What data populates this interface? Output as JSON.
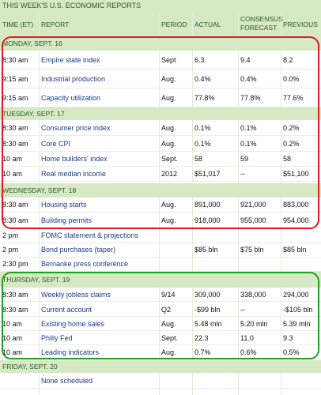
{
  "title": "THIS WEEK'S U.S. ECONOMIC REPORTS",
  "columns": {
    "time": "TIME (ET)",
    "report": "REPORT",
    "period": "PERIOD",
    "actual": "ACTUAL",
    "consensus_line1": "CONSENSUS",
    "consensus_line2": "FORECAST",
    "previous": "PREVIOUS"
  },
  "days": [
    {
      "label": "MONDAY, SEPT. 16",
      "rows": [
        {
          "time": "8:30 am",
          "report": "Empire state index",
          "period": "Sept",
          "actual": "6.3",
          "consensus": "9.4",
          "previous": "8.2"
        },
        {
          "time": "9:15 am",
          "report": "Industrial production",
          "period": "Aug.",
          "actual": "0.4%",
          "consensus": "0.4%",
          "previous": "0.0%"
        },
        {
          "time": "9:15 am",
          "report": "Capacity utilization",
          "period": "Aug.",
          "actual": "77.8%",
          "consensus": "77.8%",
          "previous": "77.6%"
        }
      ]
    },
    {
      "label": "TUESDAY, SEPT. 17",
      "rows": [
        {
          "time": "8:30 am",
          "report": "Consumer price index",
          "period": "Aug.",
          "actual": "0.1%",
          "consensus": "0.1%",
          "previous": "0.2%"
        },
        {
          "time": "8:30 am",
          "report": "Core CPI",
          "period": "Aug.",
          "actual": "0.1%",
          "consensus": "0.1%",
          "previous": "0.2%"
        },
        {
          "time": "10 am",
          "report": "Home builders' index",
          "period": "Sept.",
          "actual": "58",
          "consensus": "59",
          "previous": "58"
        },
        {
          "time": "10 am",
          "report": "Real median income",
          "period": "2012",
          "actual": "$51,017",
          "consensus": "--",
          "previous": "$51,100"
        }
      ]
    },
    {
      "label": "WEDNESDAY, SEPT. 18",
      "rows": [
        {
          "time": "8:30 am",
          "report": "Housing starts",
          "period": "Aug.",
          "actual": "891,000",
          "consensus": "921,000",
          "previous": "883,000"
        },
        {
          "time": "8:30 am",
          "report": "Building permits",
          "period": "Aug.",
          "actual": "918,000",
          "consensus": "955,000",
          "previous": "954,000"
        },
        {
          "time": "2 pm",
          "report": "FOMC statement & projections",
          "period": "",
          "actual": "",
          "consensus": "",
          "previous": ""
        },
        {
          "time": "2 pm",
          "report": "Bond purchases (taper)",
          "period": "",
          "actual": "$85 bln",
          "consensus": "$75 bln",
          "previous": "$85 bln"
        },
        {
          "time": "2:30 pm",
          "report": "Bernanke press conference",
          "period": "",
          "actual": "",
          "consensus": "",
          "previous": ""
        }
      ]
    },
    {
      "label": "THURSDAY, SEPT. 19",
      "rows": [
        {
          "time": "8:30 am",
          "report": "Weekly jobless claims",
          "period": "9/14",
          "actual": "309,000",
          "consensus": "338,000",
          "previous": "294,000"
        },
        {
          "time": "8:30 am",
          "report": "Current account",
          "period": "Q2",
          "actual": "-$99 bln",
          "consensus": "--",
          "previous": "-$105 bln"
        },
        {
          "time": "10 am",
          "report": "Existing home sales",
          "period": "Aug.",
          "actual": "5.48 mln",
          "consensus": "5.20 mln",
          "previous": "5.39 mln"
        },
        {
          "time": "10 am",
          "report": "Philly Fed",
          "period": "Sept.",
          "actual": "22.3",
          "consensus": "11.0",
          "previous": "9.3"
        },
        {
          "time": "10 am",
          "report": "Leading indicators",
          "period": "Aug.",
          "actual": "0.7%",
          "consensus": "0.6%",
          "previous": "0.5%"
        }
      ]
    },
    {
      "label": "FRIDAY, SEPT. 20",
      "rows": [
        {
          "time": "",
          "report": "None scheduled",
          "period": "",
          "actual": "",
          "consensus": "",
          "previous": ""
        }
      ]
    }
  ],
  "colors": {
    "header_bg": "#d6e8c4",
    "header_text": "#2a5a2a",
    "report_text": "#1b3b86",
    "highlight_red": "#e01b1b",
    "highlight_green": "#1ca11c"
  }
}
